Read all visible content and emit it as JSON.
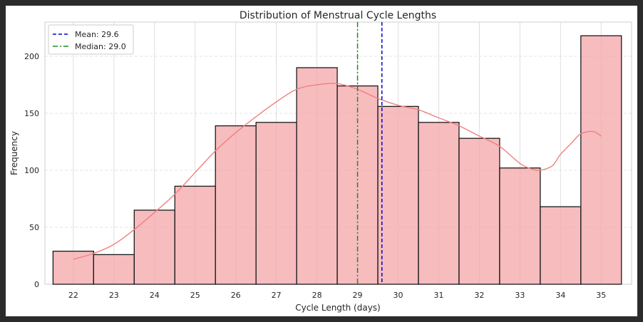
{
  "chart_data": {
    "type": "bar",
    "title": "Distribution of Menstrual Cycle Lengths",
    "xlabel": "Cycle Length (days)",
    "ylabel": "Frequency",
    "categories": [
      "22",
      "23",
      "24",
      "25",
      "26",
      "27",
      "28",
      "29",
      "30",
      "31",
      "32",
      "33",
      "34",
      "35"
    ],
    "values": [
      29,
      26,
      65,
      86,
      139,
      142,
      190,
      174,
      156,
      142,
      128,
      102,
      68,
      218
    ],
    "bar_color": "#f4a6a8",
    "bar_edge_color": "#1a1a1a",
    "ylim": [
      0,
      230
    ],
    "yticks": [
      0,
      50,
      100,
      150,
      200
    ],
    "xlim": [
      21.3,
      35.75
    ],
    "grid": true,
    "kde": {
      "color": "#f08080",
      "x": [
        22,
        22.5,
        23,
        23.5,
        24,
        24.5,
        25,
        25.5,
        26,
        26.5,
        27,
        27.5,
        28,
        28.5,
        29,
        29.5,
        30,
        30.5,
        31,
        31.5,
        32,
        32.5,
        33,
        33.3,
        33.5,
        33.8,
        34,
        34.3,
        34.5,
        34.8,
        35
      ],
      "y": [
        22,
        27,
        35,
        48,
        63,
        79,
        98,
        117,
        133,
        147,
        160,
        171,
        175,
        176,
        171,
        163,
        157,
        153,
        146,
        139,
        130,
        121,
        106,
        101,
        100,
        104,
        114,
        125,
        132,
        134,
        130
      ]
    },
    "reference_lines": [
      {
        "label": "Mean: 29.6",
        "value": 29.6,
        "color": "#0000cc",
        "style": "dashed"
      },
      {
        "label": "Median: 29.0",
        "value": 29.0,
        "color": "#228b22",
        "style": "dashdot"
      }
    ],
    "legend_position": "top-left"
  }
}
